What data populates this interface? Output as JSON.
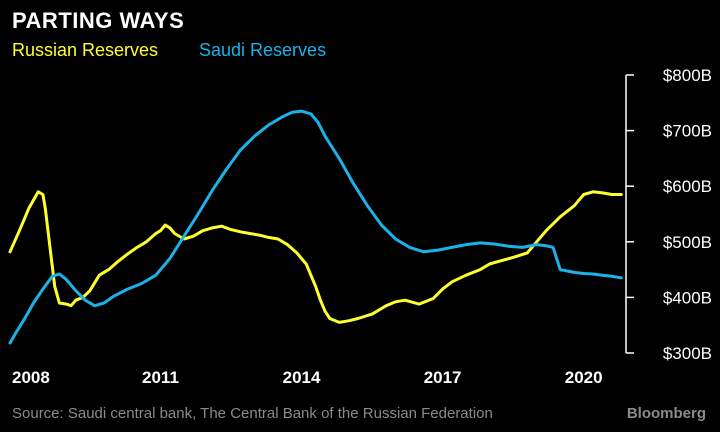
{
  "header": {
    "title": "PARTING WAYS",
    "legend_russia": "Russian Reserves",
    "legend_saudi": "Saudi Reserves"
  },
  "footer": {
    "source": "Source: Saudi central bank, The Central Bank of the Russian Federation",
    "brand": "Bloomberg"
  },
  "colors": {
    "russia": "#ffff2e",
    "saudi": "#1ab2e8",
    "axis": "#ffffff",
    "background": "#000000"
  },
  "chart_data": {
    "type": "line",
    "title": "PARTING WAYS",
    "xlabel": "",
    "ylabel": "",
    "xlim": [
      2007.8,
      2020.9
    ],
    "ylim": [
      300,
      800
    ],
    "grid": false,
    "legend": "top-left",
    "x_ticks": [
      {
        "value": 2008,
        "label": "2008"
      },
      {
        "value": 2011,
        "label": "2011"
      },
      {
        "value": 2014,
        "label": "2014"
      },
      {
        "value": 2017,
        "label": "2017"
      },
      {
        "value": 2020,
        "label": "2020"
      }
    ],
    "y_ticks": [
      {
        "value": 300,
        "label": "$300B"
      },
      {
        "value": 400,
        "label": "$400B"
      },
      {
        "value": 500,
        "label": "$500B"
      },
      {
        "value": 600,
        "label": "$600B"
      },
      {
        "value": 700,
        "label": "$700B"
      },
      {
        "value": 800,
        "label": "$800B"
      }
    ],
    "series": [
      {
        "name": "Russian Reserves",
        "color": "#ffff2e",
        "x": [
          2007.8,
          2008.0,
          2008.2,
          2008.4,
          2008.5,
          2008.55,
          2008.65,
          2008.75,
          2008.85,
          2009.0,
          2009.1,
          2009.2,
          2009.35,
          2009.5,
          2009.7,
          2009.9,
          2010.1,
          2010.3,
          2010.5,
          2010.7,
          2010.9,
          2011.0,
          2011.1,
          2011.2,
          2011.3,
          2011.5,
          2011.7,
          2011.9,
          2012.1,
          2012.3,
          2012.5,
          2012.7,
          2012.9,
          2013.1,
          2013.3,
          2013.5,
          2013.7,
          2013.9,
          2014.0,
          2014.1,
          2014.2,
          2014.3,
          2014.4,
          2014.5,
          2014.6,
          2014.8,
          2015.0,
          2015.2,
          2015.5,
          2015.8,
          2016.0,
          2016.2,
          2016.5,
          2016.8,
          2017.0,
          2017.2,
          2017.5,
          2017.8,
          2018.0,
          2018.2,
          2018.5,
          2018.8,
          2019.0,
          2019.2,
          2019.5,
          2019.8,
          2020.0,
          2020.2,
          2020.4,
          2020.6,
          2020.8
        ],
        "values": [
          482,
          520,
          560,
          590,
          585,
          560,
          490,
          420,
          390,
          388,
          385,
          395,
          400,
          412,
          440,
          450,
          465,
          478,
          490,
          500,
          515,
          520,
          530,
          525,
          515,
          505,
          510,
          520,
          525,
          528,
          522,
          518,
          515,
          512,
          508,
          505,
          495,
          480,
          470,
          460,
          440,
          420,
          395,
          375,
          362,
          355,
          358,
          362,
          370,
          385,
          392,
          395,
          388,
          398,
          415,
          428,
          440,
          450,
          460,
          465,
          472,
          480,
          500,
          520,
          545,
          565,
          585,
          590,
          588,
          585,
          585
        ]
      },
      {
        "name": "Saudi Reserves",
        "color": "#1ab2e8",
        "x": [
          2007.8,
          2007.95,
          2008.1,
          2008.3,
          2008.5,
          2008.7,
          2008.85,
          2009.0,
          2009.2,
          2009.4,
          2009.6,
          2009.8,
          2010.0,
          2010.3,
          2010.6,
          2010.9,
          2011.2,
          2011.5,
          2011.8,
          2012.1,
          2012.4,
          2012.7,
          2013.0,
          2013.3,
          2013.6,
          2013.8,
          2014.0,
          2014.2,
          2014.35,
          2014.5,
          2014.8,
          2015.1,
          2015.4,
          2015.7,
          2016.0,
          2016.3,
          2016.6,
          2016.9,
          2017.2,
          2017.5,
          2017.8,
          2018.1,
          2018.4,
          2018.7,
          2019.0,
          2019.2,
          2019.35,
          2019.5,
          2019.8,
          2020.0,
          2020.2,
          2020.4,
          2020.6,
          2020.8
        ],
        "values": [
          318,
          340,
          360,
          390,
          415,
          438,
          442,
          432,
          412,
          395,
          385,
          390,
          402,
          415,
          425,
          440,
          470,
          510,
          550,
          592,
          630,
          665,
          690,
          710,
          725,
          733,
          735,
          730,
          715,
          690,
          650,
          605,
          565,
          530,
          505,
          490,
          482,
          485,
          490,
          495,
          498,
          496,
          492,
          490,
          495,
          493,
          490,
          450,
          445,
          443,
          442,
          440,
          438,
          435
        ]
      }
    ]
  }
}
